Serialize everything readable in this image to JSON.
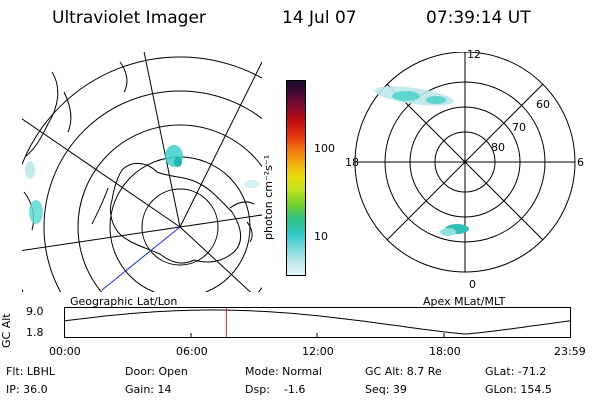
{
  "header": {
    "instrument": "Ultraviolet Imager",
    "date": "14 Jul 07",
    "time": "07:39:14 UT"
  },
  "left_panel": {
    "caption": "Geographic Lat/Lon"
  },
  "right_panel": {
    "caption": "Apex MLat/MLT",
    "mlt_labels": {
      "top": "12",
      "bottom": "0",
      "left": "18",
      "right": "6"
    },
    "lat_labels": [
      "60",
      "70",
      "80"
    ]
  },
  "colorbar": {
    "unit_label": "photon cm⁻²s⁻¹",
    "ticks": [
      "100",
      "10"
    ],
    "colors": [
      "#1a0a2e",
      "#4b0a3a",
      "#8a0a2a",
      "#c01010",
      "#e83a10",
      "#f07a10",
      "#f0b010",
      "#e8e010",
      "#b8e020",
      "#70d030",
      "#30c080",
      "#30c8c8",
      "#7adada",
      "#bfe8ec",
      "#e6f6f8"
    ]
  },
  "timeline": {
    "ylabel": "GC Alt",
    "ytick_top": "9.0",
    "ytick_bottom": "1.8",
    "xticks": [
      "00:00",
      "06:00",
      "12:00",
      "18:00",
      "23:59"
    ],
    "marker_hours": 7.654,
    "marker_color": "#e02020"
  },
  "info": {
    "filter": "Flt: LBHL",
    "ip": "IP: 36.0",
    "door": "Door: Open",
    "gain": "Gain: 14",
    "mode": "Mode: Normal",
    "dsp": "Dsp:    -1.6",
    "gc_alt": "GC Alt: 8.7 Re",
    "seq": "Seq: 39",
    "glat": "GLat: -71.2",
    "glon": "GLon: 154.5"
  }
}
